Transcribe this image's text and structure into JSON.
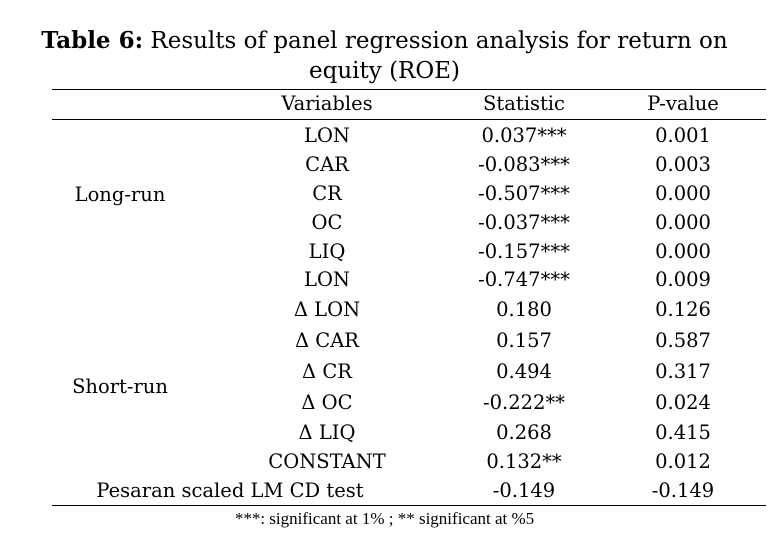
{
  "title": {
    "label": "Table 6:",
    "text": " Results of panel regression analysis for return on",
    "text2": "equity (ROE)"
  },
  "headers": [
    "Variables",
    "Statistic",
    "P-value"
  ],
  "groups": {
    "long_run": "Long-run",
    "short_run": "Short-run"
  },
  "rows": [
    {
      "variable": "LON",
      "statistic": "0.037***",
      "pvalue": "0.001"
    },
    {
      "variable": "CAR",
      "statistic": "-0.083***",
      "pvalue": "0.003"
    },
    {
      "variable": "CR",
      "statistic": "-0.507***",
      "pvalue": "0.000"
    },
    {
      "variable": "OC",
      "statistic": "-0.037***",
      "pvalue": "0.000"
    },
    {
      "variable": "LIQ",
      "statistic": "-0.157***",
      "pvalue": "0.000"
    },
    {
      "variable": "LON",
      "statistic": "-0.747***",
      "pvalue": "0.009"
    },
    {
      "variable": "Δ LON",
      "statistic": "0.180",
      "pvalue": "0.126"
    },
    {
      "variable": "Δ CAR",
      "statistic": "0.157",
      "pvalue": "0.587"
    },
    {
      "variable": "Δ CR",
      "statistic": "0.494",
      "pvalue": "0.317"
    },
    {
      "variable": "Δ OC",
      "statistic": "-0.222**",
      "pvalue": "0.024"
    },
    {
      "variable": "Δ LIQ",
      "statistic": "0.268",
      "pvalue": "0.415"
    },
    {
      "variable": "CONSTANT",
      "statistic": "0.132**",
      "pvalue": "0.012"
    }
  ],
  "pesaran": {
    "label": "Pesaran scaled LM CD test",
    "statistic": "-0.149",
    "pvalue": "-0.149"
  },
  "footnote": "***: significant at 1% ; ** significant at %5"
}
